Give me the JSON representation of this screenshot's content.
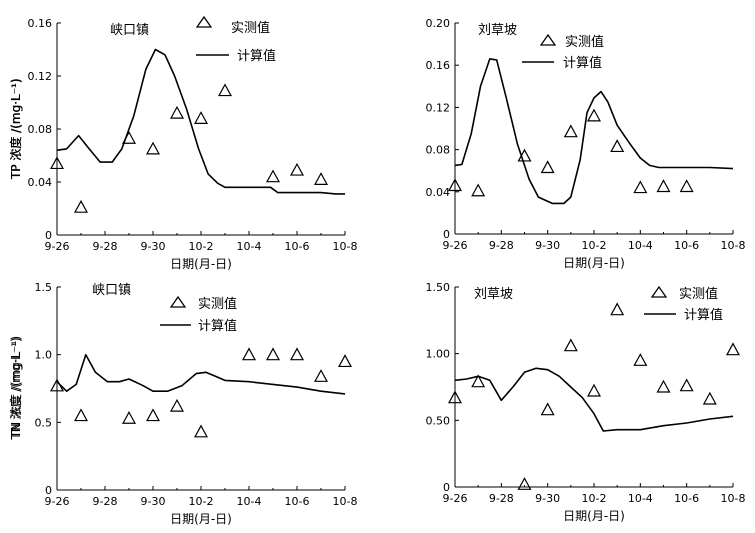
{
  "chart_data": [
    {
      "type": "line",
      "id": "tp-xiakou",
      "station": "峡口镇",
      "xlabel": "日期(月-日)",
      "ylabel": "TP 浓度 /(mg·L⁻¹)",
      "xlim": [
        0,
        12
      ],
      "ylim": [
        0,
        0.16
      ],
      "xticks": [
        0,
        2,
        4,
        6,
        8,
        10,
        12
      ],
      "xtick_labels": [
        "9-26",
        "9-28",
        "9-30",
        "10-2",
        "10-4",
        "10-6",
        "10-8"
      ],
      "yticks": [
        0,
        0.04,
        0.08,
        0.12,
        0.16
      ],
      "ytick_labels": [
        "0",
        "0.04",
        "0.08",
        "0.12",
        "0.16"
      ],
      "legend": {
        "measured": "实测值",
        "computed": "计算值"
      },
      "measured": [
        [
          0,
          0.054
        ],
        [
          1,
          0.021
        ],
        [
          3,
          0.073
        ],
        [
          4,
          0.065
        ],
        [
          5,
          0.092
        ],
        [
          6,
          0.088
        ],
        [
          7,
          0.109
        ],
        [
          9,
          0.044
        ],
        [
          10,
          0.049
        ],
        [
          11,
          0.042
        ]
      ],
      "computed": [
        [
          0,
          0.064
        ],
        [
          0.4,
          0.065
        ],
        [
          0.9,
          0.075
        ],
        [
          1.3,
          0.066
        ],
        [
          1.8,
          0.055
        ],
        [
          2.3,
          0.055
        ],
        [
          2.7,
          0.065
        ],
        [
          3.2,
          0.09
        ],
        [
          3.7,
          0.125
        ],
        [
          4.1,
          0.14
        ],
        [
          4.5,
          0.136
        ],
        [
          4.9,
          0.12
        ],
        [
          5.4,
          0.095
        ],
        [
          5.9,
          0.065
        ],
        [
          6.3,
          0.046
        ],
        [
          6.7,
          0.039
        ],
        [
          7,
          0.036
        ],
        [
          8,
          0.036
        ],
        [
          8.9,
          0.036
        ],
        [
          9.2,
          0.032
        ],
        [
          10,
          0.032
        ],
        [
          11,
          0.032
        ],
        [
          11.6,
          0.031
        ],
        [
          12,
          0.031
        ]
      ]
    },
    {
      "type": "line",
      "id": "tp-liucaopo",
      "station": "刘草坡",
      "xlabel": "日期(月-日)",
      "ylabel": "TP 浓度 /(mg·L⁻¹)",
      "xlim": [
        0,
        12
      ],
      "ylim": [
        0,
        0.2
      ],
      "xticks": [
        0,
        2,
        4,
        6,
        8,
        10,
        12
      ],
      "xtick_labels": [
        "9-26",
        "9-28",
        "9-30",
        "10-2",
        "10-4",
        "10-6",
        "10-8"
      ],
      "yticks": [
        0,
        0.04,
        0.08,
        0.12,
        0.16,
        0.2
      ],
      "ytick_labels": [
        "0",
        "0.04",
        "0.08",
        "0.12",
        "0.16",
        "0.20"
      ],
      "legend": {
        "measured": "实测值",
        "computed": "计算值"
      },
      "measured": [
        [
          0,
          0.046
        ],
        [
          1,
          0.041
        ],
        [
          3,
          0.074
        ],
        [
          4,
          0.063
        ],
        [
          5,
          0.097
        ],
        [
          6,
          0.112
        ],
        [
          7,
          0.083
        ],
        [
          8,
          0.044
        ],
        [
          9,
          0.045
        ],
        [
          10,
          0.045
        ]
      ],
      "computed": [
        [
          0,
          0.065
        ],
        [
          0.3,
          0.066
        ],
        [
          0.7,
          0.095
        ],
        [
          1.1,
          0.14
        ],
        [
          1.5,
          0.166
        ],
        [
          1.8,
          0.165
        ],
        [
          2.2,
          0.13
        ],
        [
          2.7,
          0.085
        ],
        [
          3.2,
          0.052
        ],
        [
          3.6,
          0.035
        ],
        [
          4.2,
          0.029
        ],
        [
          4.7,
          0.029
        ],
        [
          5,
          0.035
        ],
        [
          5.4,
          0.07
        ],
        [
          5.7,
          0.115
        ],
        [
          6,
          0.129
        ],
        [
          6.3,
          0.135
        ],
        [
          6.6,
          0.125
        ],
        [
          7,
          0.103
        ],
        [
          7.5,
          0.087
        ],
        [
          8,
          0.072
        ],
        [
          8.4,
          0.065
        ],
        [
          8.8,
          0.063
        ],
        [
          9.5,
          0.063
        ],
        [
          10,
          0.063
        ],
        [
          11,
          0.063
        ],
        [
          12,
          0.062
        ]
      ]
    },
    {
      "type": "line",
      "id": "tn-xiakou",
      "station": "峡口镇",
      "xlabel": "日期(月-日)",
      "ylabel": "TN 浓度 /(mg·L⁻¹)",
      "xlim": [
        0,
        12
      ],
      "ylim": [
        0,
        1.5
      ],
      "xticks": [
        0,
        2,
        4,
        6,
        8,
        10,
        12
      ],
      "xtick_labels": [
        "9-26",
        "9-28",
        "9-30",
        "10-2",
        "10-4",
        "10-6",
        "10-8"
      ],
      "yticks": [
        0,
        0.5,
        1.0,
        1.5
      ],
      "ytick_labels": [
        "0",
        "0.5",
        "1.0",
        "1.5"
      ],
      "legend": {
        "measured": "实测值",
        "computed": "计算值"
      },
      "measured": [
        [
          0,
          0.77
        ],
        [
          1,
          0.55
        ],
        [
          3,
          0.53
        ],
        [
          4,
          0.55
        ],
        [
          5,
          0.62
        ],
        [
          6,
          0.43
        ],
        [
          8,
          1.0
        ],
        [
          9,
          1.0
        ],
        [
          10,
          1.0
        ],
        [
          11,
          0.84
        ],
        [
          12,
          0.95
        ]
      ],
      "computed": [
        [
          0,
          0.8
        ],
        [
          0.4,
          0.73
        ],
        [
          0.8,
          0.78
        ],
        [
          1.2,
          1.0
        ],
        [
          1.6,
          0.87
        ],
        [
          2.1,
          0.8
        ],
        [
          2.6,
          0.8
        ],
        [
          3,
          0.82
        ],
        [
          3.6,
          0.77
        ],
        [
          4,
          0.73
        ],
        [
          4.6,
          0.73
        ],
        [
          5.2,
          0.77
        ],
        [
          5.8,
          0.86
        ],
        [
          6.2,
          0.87
        ],
        [
          6.6,
          0.84
        ],
        [
          7,
          0.81
        ],
        [
          8,
          0.8
        ],
        [
          9,
          0.78
        ],
        [
          10,
          0.76
        ],
        [
          11,
          0.73
        ],
        [
          12,
          0.71
        ]
      ]
    },
    {
      "type": "line",
      "id": "tn-liucaopo",
      "station": "刘草坡",
      "xlabel": "日期(月-日)",
      "ylabel": "TN 浓度 /(mg·L⁻¹)",
      "xlim": [
        0,
        12
      ],
      "ylim": [
        0,
        1.5
      ],
      "xticks": [
        0,
        2,
        4,
        6,
        8,
        10,
        12
      ],
      "xtick_labels": [
        "9-26",
        "9-28",
        "9-30",
        "10-2",
        "10-4",
        "10-6",
        "10-8"
      ],
      "yticks": [
        0,
        0.5,
        1.0,
        1.5
      ],
      "ytick_labels": [
        "0",
        "0.50",
        "1.00",
        "1.50"
      ],
      "legend": {
        "measured": "实测值",
        "computed": "计算值"
      },
      "measured": [
        [
          0,
          0.67
        ],
        [
          1,
          0.79
        ],
        [
          3,
          0.02
        ],
        [
          4,
          0.58
        ],
        [
          5,
          1.06
        ],
        [
          6,
          0.72
        ],
        [
          7,
          1.33
        ],
        [
          8,
          0.95
        ],
        [
          9,
          0.75
        ],
        [
          10,
          0.76
        ],
        [
          11,
          0.66
        ],
        [
          12,
          1.03
        ]
      ],
      "computed": [
        [
          0,
          0.8
        ],
        [
          0.5,
          0.81
        ],
        [
          1,
          0.83
        ],
        [
          1.5,
          0.8
        ],
        [
          2,
          0.65
        ],
        [
          2.5,
          0.75
        ],
        [
          3,
          0.86
        ],
        [
          3.5,
          0.89
        ],
        [
          4,
          0.88
        ],
        [
          4.5,
          0.83
        ],
        [
          5,
          0.75
        ],
        [
          5.5,
          0.67
        ],
        [
          6,
          0.55
        ],
        [
          6.4,
          0.42
        ],
        [
          7,
          0.43
        ],
        [
          8,
          0.43
        ],
        [
          9,
          0.46
        ],
        [
          10,
          0.48
        ],
        [
          11,
          0.51
        ],
        [
          12,
          0.53
        ]
      ]
    }
  ]
}
